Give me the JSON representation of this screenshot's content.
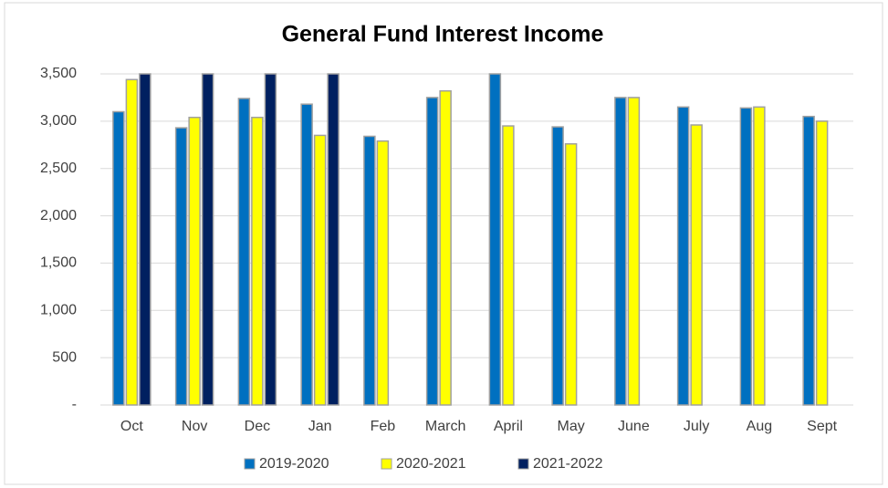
{
  "chart_data": {
    "type": "bar",
    "title": "General Fund Interest Income",
    "categories": [
      "Oct",
      "Nov",
      "Dec",
      "Jan",
      "Feb",
      "March",
      "April",
      "May",
      "June",
      "July",
      "Aug",
      "Sept"
    ],
    "series": [
      {
        "name": "2019-2020",
        "color": "#0070c0",
        "values": [
          3100,
          2930,
          3240,
          3180,
          2840,
          3250,
          3500,
          2940,
          3250,
          3150,
          3140,
          3050
        ]
      },
      {
        "name": "2020-2021",
        "color": "#ffff00",
        "values": [
          3440,
          3040,
          3040,
          2850,
          2790,
          3320,
          2950,
          2760,
          3250,
          2960,
          3150,
          3000
        ]
      },
      {
        "name": "2021-2022",
        "color": "#002060",
        "values": [
          3500,
          3500,
          3500,
          3500,
          null,
          null,
          null,
          null,
          null,
          null,
          null,
          null
        ]
      }
    ],
    "ylim": [
      0,
      3500
    ],
    "yticks": [
      {
        "value": 0,
        "label": "-"
      },
      500,
      {
        "value": 1000,
        "label": "1,000"
      },
      {
        "value": 1500,
        "label": "1,500"
      },
      {
        "value": 2000,
        "label": "2,000"
      },
      {
        "value": 2500,
        "label": "2,500"
      },
      {
        "value": 3000,
        "label": "3,000"
      },
      {
        "value": 3500,
        "label": "3,500"
      }
    ],
    "grid": true,
    "legend": "bottom"
  }
}
